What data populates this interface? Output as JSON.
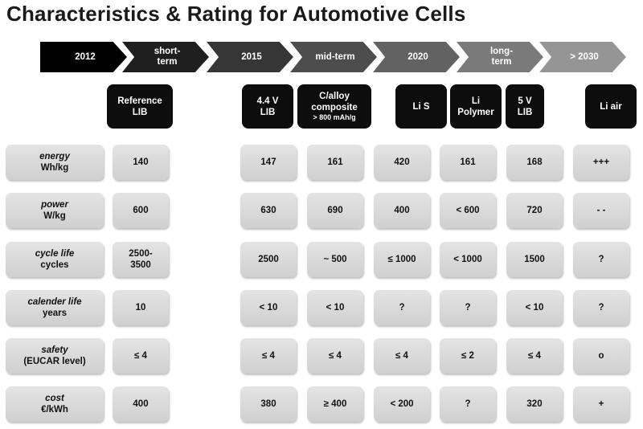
{
  "title": "Characteristics & Rating for Automotive Cells",
  "timeline": [
    "2012",
    "short-\nterm",
    "2015",
    "mid-term",
    "2020",
    "long-\nterm",
    "> 2030"
  ],
  "chemistries": [
    {
      "line1": "Reference",
      "line2": "LIB",
      "sub": ""
    },
    {
      "line1": "4.4 V",
      "line2": "LIB",
      "sub": ""
    },
    {
      "line1": "C/alloy",
      "line2": "composite",
      "sub": "> 800 mAh/g"
    },
    {
      "line1": "Li S",
      "line2": "",
      "sub": ""
    },
    {
      "line1": "Li",
      "line2": "Polymer",
      "sub": ""
    },
    {
      "line1": "5 V",
      "line2": "LIB",
      "sub": ""
    },
    {
      "line1": "Li air",
      "line2": "",
      "sub": ""
    }
  ],
  "rows": [
    {
      "name": "energy",
      "unit": "Wh/kg",
      "values": [
        "140",
        "147",
        "161",
        "420",
        "161",
        "168",
        "+++"
      ]
    },
    {
      "name": "power",
      "unit": "W/kg",
      "values": [
        "600",
        "630",
        "690",
        "400",
        "< 600",
        "720",
        "- -"
      ]
    },
    {
      "name": "cycle life",
      "unit": "cycles",
      "values": [
        "2500-\n3500",
        "2500",
        "~ 500",
        "≤ 1000",
        "< 1000",
        "1500",
        "?"
      ]
    },
    {
      "name": "calender life",
      "unit": "years",
      "values": [
        "10",
        "< 10",
        "< 10",
        "?",
        "?",
        "< 10",
        "?"
      ]
    },
    {
      "name": "safety",
      "unit": "(EUCAR level)",
      "values": [
        "≤ 4",
        "≤ 4",
        "≤ 4",
        "≤ 4",
        "≤ 2",
        "≤ 4",
        "o"
      ]
    },
    {
      "name": "cost",
      "unit": "€/kWh",
      "values": [
        "400",
        "380",
        "≥ 400",
        "< 200",
        "?",
        "320",
        "+"
      ]
    }
  ],
  "colors": {
    "timeline": [
      "#000000",
      "#1f1f1f",
      "#363636",
      "#4d4d4d",
      "#626262",
      "#7a7a7a",
      "#959595"
    ],
    "chemistry_box": "#0d0d0d",
    "value_cell": "#d9d9d9"
  }
}
